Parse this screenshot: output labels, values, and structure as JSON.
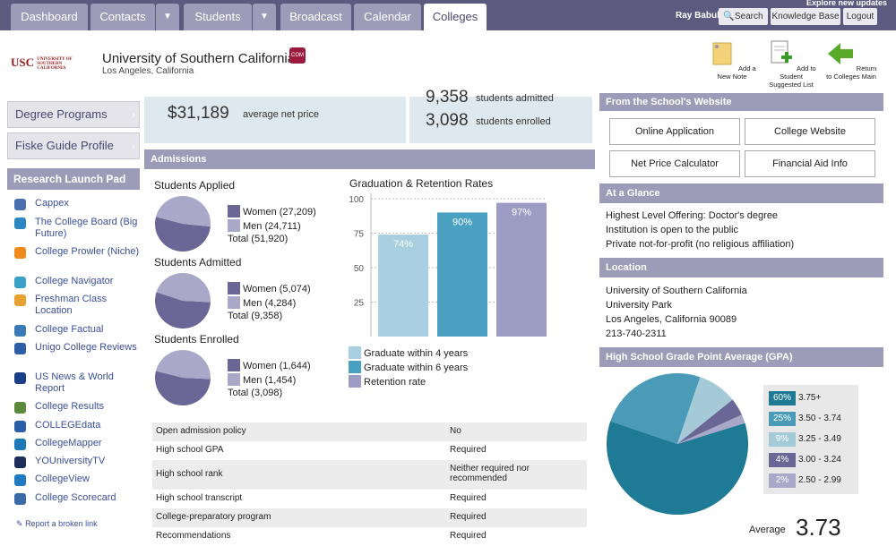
{
  "nav": {
    "tabs": [
      "Dashboard",
      "Contacts",
      "Students",
      "Broadcast",
      "Calendar",
      "Colleges"
    ],
    "user": "Ray Babul",
    "search": "Search",
    "kb": "Knowledge Base",
    "logout": "Logout",
    "updates": "Explore new updates"
  },
  "header": {
    "title": "University of Southern California",
    "location": "Los Angeles, California",
    "logo": "USC",
    "logo_sub": "UNIVERSITY OF SOUTHERN CALIFORNIA",
    "crest": "COM APP",
    "add_note": "Add a New Note",
    "add_list": "Add to Student Suggested List",
    "return": "Return to Colleges Main"
  },
  "sidebar": {
    "degree": "Degree Programs",
    "fiske": "Fiske Guide Profile",
    "launchpad": "Research Launch Pad",
    "items": [
      {
        "label": "Cappex",
        "color": "#4a6fb0"
      },
      {
        "label": "The College Board (Big Future)",
        "color": "#2d86c4"
      },
      {
        "label": "College Prowler (Niche)",
        "color": "#f08a1c"
      },
      {
        "label": "College Navigator",
        "color": "#3aa0c8"
      },
      {
        "label": "Freshman Class Location",
        "color": "#e8a030"
      },
      {
        "label": "College Factual",
        "color": "#3a7ab8"
      },
      {
        "label": "Unigo College Reviews",
        "color": "#2c5fa8"
      },
      {
        "label": "US News & World Report",
        "color": "#1c3f8a"
      },
      {
        "label": "College Results",
        "color": "#5a8a3a"
      },
      {
        "label": "COLLEGEdata",
        "color": "#2a5ea8"
      },
      {
        "label": "CollegeMapper",
        "color": "#1c7ab8"
      },
      {
        "label": "YOUniversityTV",
        "color": "#1c2f5a"
      },
      {
        "label": "CollegeView",
        "color": "#1f7ac4"
      },
      {
        "label": "College Scorecard",
        "color": "#3a6aa8"
      }
    ],
    "broken": "Report a broken link"
  },
  "stats": {
    "net_price": "$31,189",
    "net_price_label": "average net price",
    "admitted": "9,358",
    "admitted_label": "students admitted",
    "enrolled": "3,098",
    "enrolled_label": "students enrolled"
  },
  "admissions": {
    "heading": "Admissions",
    "applied_title": "Students Applied",
    "applied_women": "Women (27,209)",
    "applied_men": "Men (24,711)",
    "applied_total": "Total (51,920)",
    "admitted_title": "Students Admitted",
    "admitted_women": "Women (5,074)",
    "admitted_men": "Men (4,284)",
    "admitted_total": "Total (9,358)",
    "enrolled_title": "Students Enrolled",
    "enrolled_women": "Women (1,644)",
    "enrolled_men": "Men (1,454)",
    "enrolled_total": "Total (3,098)",
    "pies": {
      "applied": [
        27209,
        24711
      ],
      "admitted": [
        5074,
        4284
      ],
      "enrolled": [
        1644,
        1454
      ]
    },
    "colors": {
      "women": "#6a6796",
      "men": "#a9a8c8"
    }
  },
  "chart_data": [
    {
      "type": "bar",
      "title": "Graduation & Retention Rates",
      "categories": [
        "Graduate within 4 years",
        "Graduate within 6 years",
        "Retention rate"
      ],
      "values": [
        74,
        90,
        97
      ],
      "labels": [
        "74%",
        "90%",
        "97%"
      ],
      "colors": [
        "#a8d0e0",
        "#4aa0c0",
        "#9c9bc4"
      ],
      "yticks": [
        25,
        50,
        75,
        100
      ],
      "ylim": [
        0,
        100
      ]
    },
    {
      "type": "pie",
      "title": "High School Grade Point Average (GPA)",
      "categories": [
        "3.75+",
        "3.50 - 3.74",
        "3.25 - 3.49",
        "3.00 - 3.24",
        "2.50 - 2.99"
      ],
      "values": [
        60,
        25,
        9,
        4,
        2
      ],
      "labels": [
        "60%",
        "25%",
        "9%",
        "4%",
        "2%"
      ],
      "colors": [
        "#1f7a96",
        "#4a9ab8",
        "#a4cad8",
        "#6a6796",
        "#a9a8c8"
      ],
      "average_label": "Average",
      "average": "3.73"
    }
  ],
  "policy": {
    "rows": [
      {
        "k": "Open admission policy",
        "v": "No"
      },
      {
        "k": "High school GPA",
        "v": "Required"
      },
      {
        "k": "High school rank",
        "v": "Neither required nor recommended"
      },
      {
        "k": "High school transcript",
        "v": "Required"
      },
      {
        "k": "College-preparatory program",
        "v": "Required"
      },
      {
        "k": "Recommendations",
        "v": "Required"
      }
    ]
  },
  "right": {
    "website_head": "From the School's Website",
    "btn_app": "Online Application",
    "btn_site": "College Website",
    "btn_npc": "Net Price Calculator",
    "btn_fa": "Financial Aid Info",
    "glance_head": "At a Glance",
    "glance": [
      "Highest Level Offering: Doctor's degree",
      "Institution is open to the public",
      "Private not-for-profit (no religious affiliation)"
    ],
    "loc_head": "Location",
    "loc": [
      "University of Southern California",
      "University Park",
      "Los Angeles, California 90089",
      "213-740-2311"
    ],
    "gpa_head": "High School Grade Point Average (GPA)"
  }
}
